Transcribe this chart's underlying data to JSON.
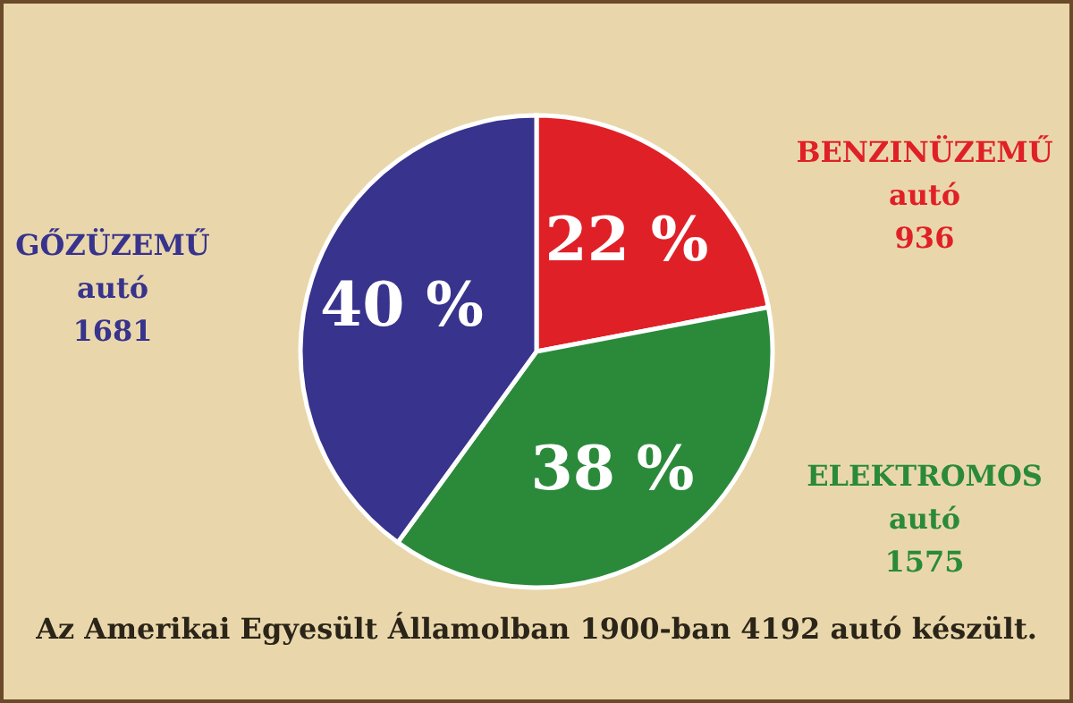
{
  "chart_data": {
    "type": "pie",
    "categories": [
      "BENZINÜZEMŰ autó 936",
      "ELEKTROMOS autó 1575",
      "GŐZÜZEMŰ autó 1681"
    ],
    "values": [
      22,
      38,
      40
    ],
    "colors": [
      "#e02027",
      "#2b8a3a",
      "#38338c"
    ],
    "value_labels": [
      "22 %",
      "38 %",
      "40 %"
    ],
    "annotations": [
      "Az Amerikai Egyesült Államolban 1900-ban 4192 autó készült."
    ]
  }
}
